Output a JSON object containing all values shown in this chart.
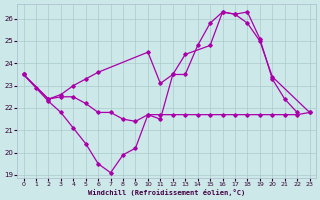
{
  "background_color": "#cce8e8",
  "grid_color": "#aacccc",
  "line_color": "#aa00aa",
  "xlabel": "Windchill (Refroidissement éolien,°C)",
  "xlim_min": -0.5,
  "xlim_max": 23.5,
  "ylim_min": 18.85,
  "ylim_max": 26.65,
  "yticks": [
    19,
    20,
    21,
    22,
    23,
    24,
    25,
    26
  ],
  "xticks": [
    0,
    1,
    2,
    3,
    4,
    5,
    6,
    7,
    8,
    9,
    10,
    11,
    12,
    13,
    14,
    15,
    16,
    17,
    18,
    19,
    20,
    21,
    22,
    23
  ],
  "series1_x": [
    0,
    1,
    2,
    3,
    4,
    5,
    6,
    7,
    8,
    9,
    10,
    11,
    12,
    13,
    14,
    15,
    16,
    17,
    18,
    19,
    20,
    21,
    22
  ],
  "series1_y": [
    23.5,
    22.9,
    22.3,
    21.8,
    21.1,
    20.4,
    19.5,
    19.1,
    19.9,
    20.2,
    21.7,
    21.5,
    23.5,
    23.5,
    24.8,
    25.8,
    26.3,
    26.2,
    26.3,
    25.1,
    23.3,
    22.4,
    21.8
  ],
  "series2_x": [
    0,
    2,
    3,
    4,
    5,
    6,
    7,
    8,
    9,
    10,
    11,
    12,
    13,
    14,
    15,
    16,
    17,
    18,
    19,
    20,
    21,
    22,
    23
  ],
  "series2_y": [
    23.5,
    22.4,
    22.5,
    22.5,
    22.2,
    21.8,
    21.8,
    21.5,
    21.4,
    21.7,
    21.7,
    21.7,
    21.7,
    21.7,
    21.7,
    21.7,
    21.7,
    21.7,
    21.7,
    21.7,
    21.7,
    21.7,
    21.8
  ],
  "series3_x": [
    0,
    2,
    3,
    4,
    5,
    6,
    10,
    11,
    12,
    13,
    15,
    16,
    17,
    18,
    19,
    20,
    23
  ],
  "series3_y": [
    23.5,
    22.4,
    22.6,
    23.0,
    23.3,
    23.6,
    24.5,
    23.1,
    23.5,
    24.4,
    24.8,
    26.3,
    26.2,
    25.8,
    25.0,
    23.4,
    21.8
  ]
}
